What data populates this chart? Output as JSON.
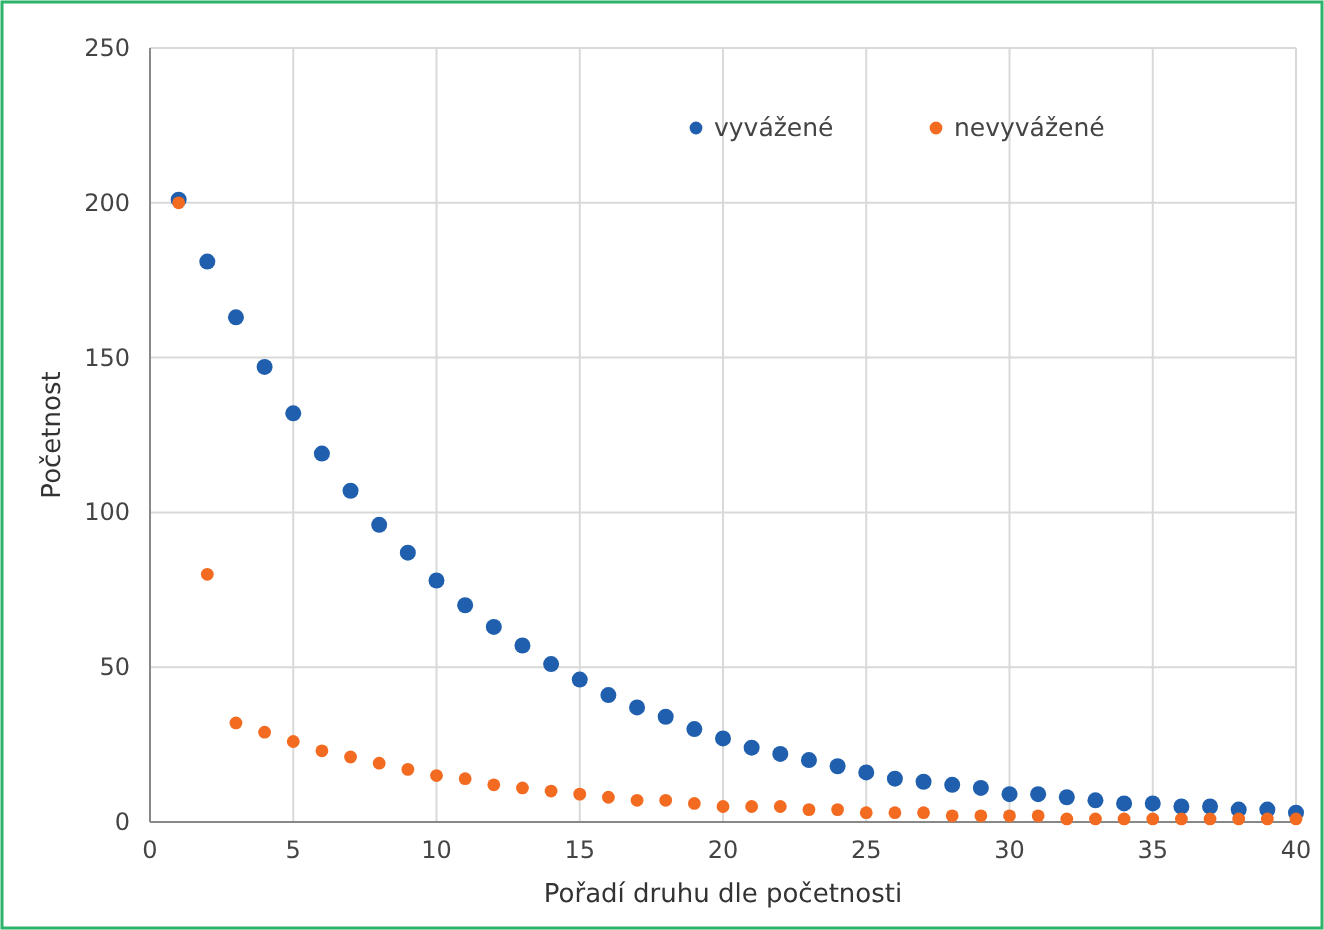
{
  "chart_data": {
    "type": "scatter",
    "xlabel": "Pořadí druhu dle početnosti",
    "ylabel": "Početnost",
    "x": [
      1,
      2,
      3,
      4,
      5,
      6,
      7,
      8,
      9,
      10,
      11,
      12,
      13,
      14,
      15,
      16,
      17,
      18,
      19,
      20,
      21,
      22,
      23,
      24,
      25,
      26,
      27,
      28,
      29,
      30,
      31,
      32,
      33,
      34,
      35,
      36,
      37,
      38,
      39,
      40
    ],
    "series": [
      {
        "name": "vyvážené",
        "color": "#1f5fad",
        "values": [
          201,
          181,
          163,
          147,
          132,
          119,
          107,
          96,
          87,
          78,
          70,
          63,
          57,
          51,
          46,
          41,
          37,
          34,
          30,
          27,
          24,
          22,
          20,
          18,
          16,
          14,
          13,
          12,
          11,
          9,
          9,
          8,
          7,
          6,
          6,
          5,
          5,
          4,
          4,
          3
        ]
      },
      {
        "name": "nevyvážené",
        "color": "#f26b21",
        "values": [
          200,
          80,
          32,
          29,
          26,
          23,
          21,
          19,
          17,
          15,
          14,
          12,
          11,
          10,
          9,
          8,
          7,
          7,
          6,
          5,
          5,
          5,
          4,
          4,
          3,
          3,
          3,
          2,
          2,
          2,
          2,
          1,
          1,
          1,
          1,
          1,
          1,
          1,
          1,
          1
        ]
      }
    ],
    "xlim": [
      0,
      40
    ],
    "xticks": [
      0,
      5,
      10,
      15,
      20,
      25,
      30,
      35,
      40
    ],
    "ylim": [
      0,
      250
    ],
    "yticks": [
      0,
      50,
      100,
      150,
      200,
      250
    ],
    "grid": true,
    "legend": "top right",
    "marker": "circle"
  }
}
